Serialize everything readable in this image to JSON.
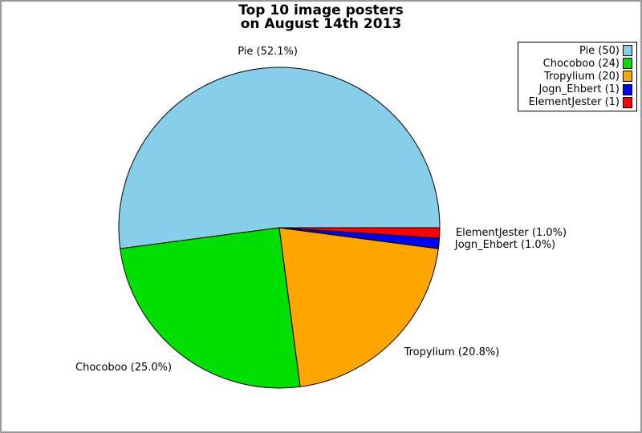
{
  "frame": {
    "border_color": "#9a9a9a",
    "background": "#ffffff"
  },
  "title": {
    "line1": "Top 10 image posters",
    "line2": "on August 14th 2013"
  },
  "chart_data": {
    "type": "pie",
    "title": "Top 10 image posters\non August 14th 2013",
    "start_angle_deg": 0,
    "direction": "counterclockwise",
    "label_distance": 1.1,
    "edge_color": "#000000",
    "legend_position": "top-right",
    "slices": [
      {
        "name": "Pie",
        "count": 50,
        "percent": 52.1,
        "label": "Pie (52.1%)",
        "legend_label": "Pie (50)",
        "color": "#87CEEB"
      },
      {
        "name": "Chocoboo",
        "count": 24,
        "percent": 25.0,
        "label": "Chocoboo (25.0%)",
        "legend_label": "Chocoboo (24)",
        "color": "#00E000"
      },
      {
        "name": "Tropylium",
        "count": 20,
        "percent": 20.8,
        "label": "Tropylium (20.8%)",
        "legend_label": "Tropylium (20)",
        "color": "#FFA500"
      },
      {
        "name": "Jogn_Ehbert",
        "count": 1,
        "percent": 1.0,
        "label": "Jogn_Ehbert (1.0%)",
        "legend_label": "Jogn_Ehbert (1)",
        "color": "#0000FF"
      },
      {
        "name": "ElementJester",
        "count": 1,
        "percent": 1.0,
        "label": "ElementJester (1.0%)",
        "legend_label": "ElementJester (1)",
        "color": "#FF0000"
      }
    ]
  }
}
